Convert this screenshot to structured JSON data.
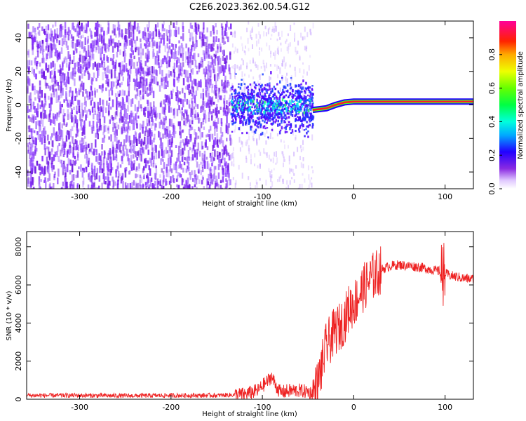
{
  "title": "C2E6.2023.362.00.54.G12",
  "chart_data": [
    {
      "type": "heatmap",
      "title": "C2E6.2023.362.00.54.G12",
      "xlabel": "Height of straight line (km)",
      "ylabel": "Frequency (Hz)",
      "xlim": [
        -358,
        131
      ],
      "ylim": [
        -50,
        50
      ],
      "xticks": [
        -300,
        -200,
        -100,
        0,
        100
      ],
      "yticks": [
        -40,
        -20,
        0,
        20,
        40
      ],
      "colorbar": {
        "label": "Normalized spectral amplitude",
        "range": [
          0,
          1
        ],
        "ticks": [
          0.0,
          0.2,
          0.4,
          0.6,
          0.8
        ]
      },
      "features": [
        {
          "description": "diffuse noise",
          "x_range": [
            -358,
            -135
          ],
          "f_range": [
            -50,
            50
          ]
        },
        {
          "description": "sparse noise",
          "x_range": [
            -135,
            -45
          ],
          "f_range": [
            -50,
            50
          ]
        },
        {
          "description": "signal onset blob",
          "x_range": [
            -135,
            -45
          ],
          "f_center": 0
        },
        {
          "description": "carrier line",
          "x_range": [
            -45,
            131
          ],
          "f_center": [
            -3,
            2
          ]
        }
      ]
    },
    {
      "type": "line",
      "xlabel": "Height of straight line (km)",
      "ylabel": "SNR (10 * v/v)",
      "xlim": [
        -358,
        131
      ],
      "ylim": [
        0,
        8800
      ],
      "xticks": [
        -300,
        -200,
        -100,
        0,
        100
      ],
      "yticks": [
        0,
        2000,
        4000,
        6000,
        8000
      ],
      "series": [
        {
          "name": "SNR",
          "color": "#ee2222",
          "x": [
            -358,
            -300,
            -250,
            -200,
            -150,
            -120,
            -105,
            -100,
            -95,
            -90,
            -85,
            -80,
            -70,
            -60,
            -50,
            -45,
            -40,
            -35,
            -30,
            -25,
            -20,
            -15,
            -10,
            -5,
            0,
            5,
            10,
            15,
            20,
            25,
            30,
            40,
            50,
            60,
            70,
            80,
            90,
            95,
            100,
            105,
            110,
            120,
            131
          ],
          "values": [
            200,
            200,
            180,
            200,
            200,
            250,
            450,
            700,
            900,
            1200,
            700,
            350,
            450,
            450,
            400,
            300,
            700,
            1700,
            2800,
            3200,
            3600,
            3800,
            4200,
            4800,
            5000,
            5400,
            5800,
            6100,
            6400,
            6600,
            6800,
            7000,
            7050,
            7000,
            6950,
            6850,
            6750,
            6700,
            6600,
            6500,
            6450,
            6350,
            6300
          ]
        }
      ]
    }
  ]
}
